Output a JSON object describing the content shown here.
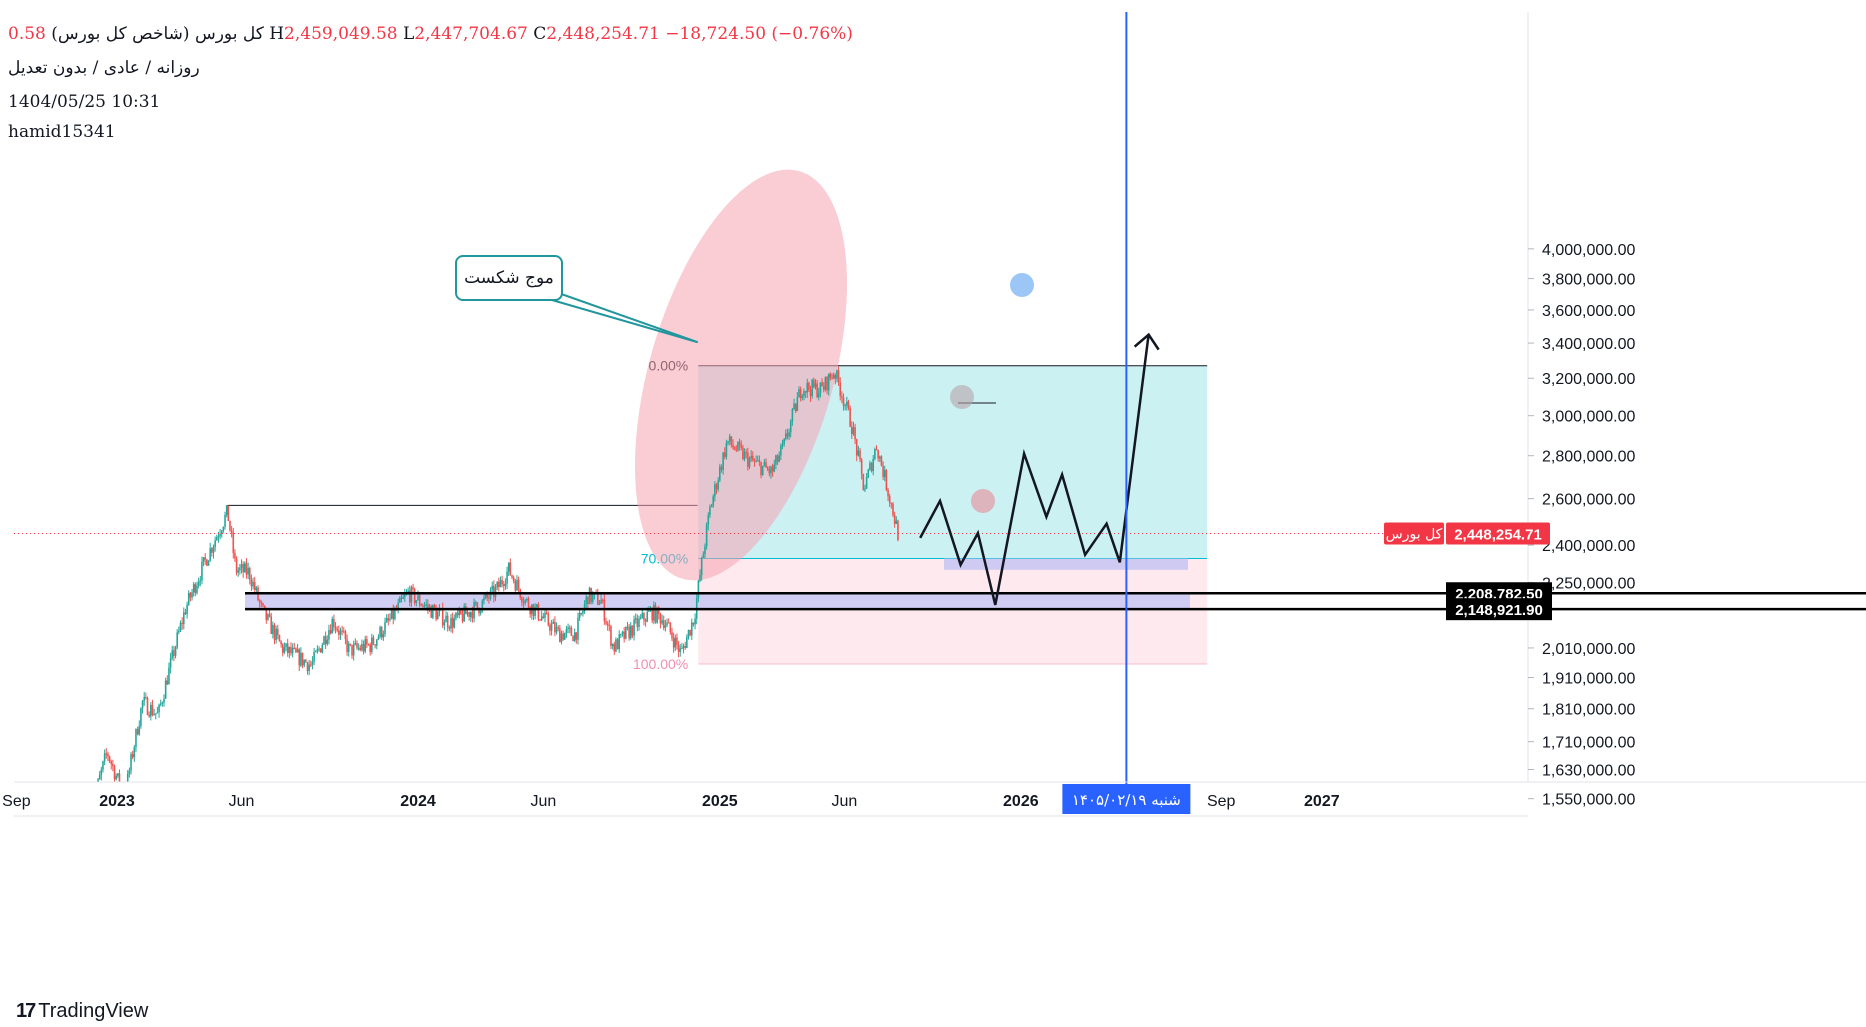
{
  "header": {
    "title": "کل بورس (شاخص کل بورس)",
    "open_tail": "0.58",
    "high_prefix": "H",
    "high": "2,459,049.58",
    "low_prefix": "L",
    "low": "2,447,704.67",
    "close_prefix": "C",
    "close": "2,448,254.71",
    "change": "−18,724.50 (−0.76%)",
    "subtitle": "روزانه / عادی / بدون تعدیل",
    "datetime": "1404/05/25 10:31",
    "author": "hamid15341"
  },
  "branding": {
    "logo_mark": "17",
    "name": "TradingView"
  },
  "annotations": {
    "callout": "موج شکست",
    "fib_0": "0.00%",
    "fib_70": "70.00%",
    "fib_100": "100.00%",
    "cursor_date": "شنبه ۱۴۰۵/۰۲/۱۹"
  },
  "colors": {
    "up": "#26a69a",
    "down": "#ef5350",
    "vline": "#2962ff",
    "price_tag": "#f23645",
    "fib_upper_fill": "#c9f0f2",
    "fib_lower_fill": "#fde9ee",
    "zone_fill": "#c9c7f2",
    "ellipse_fill": "#f5a3b0",
    "callout_border": "#21969c"
  },
  "chart_data": {
    "type": "candlestick",
    "symbol": "کل بورس",
    "timeframe": "daily",
    "y_scale": "log",
    "ylim": [
      1500000,
      4000000
    ],
    "y_ticks": [
      1550000,
      1630000,
      1710000,
      1810000,
      1910000,
      2010000,
      2250000,
      2400000,
      2600000,
      2800000,
      3000000,
      3200000,
      3400000,
      3600000,
      3800000,
      4000000
    ],
    "y_tick_labels": [
      "1,550,000.00",
      "1,630,000.00",
      "1,710,000.00",
      "1,810,000.00",
      "1,910,000.00",
      "2,010,000.00",
      "2,250,000.00",
      "2,400,000.00",
      "2,600,000.00",
      "2,800,000.00",
      "3,000,000.00",
      "3,200,000.00",
      "3,400,000.00",
      "3,600,000.00",
      "3,800,000.00",
      "4,000,000.00"
    ],
    "x_ticks": [
      "2022-09",
      "2023-01",
      "2023-06",
      "2024-01",
      "2024-06",
      "2025-01",
      "2025-06",
      "2026-01",
      "2026-09",
      "2027-01"
    ],
    "x_tick_labels": [
      "Sep",
      "2023",
      "Jun",
      "2024",
      "Jun",
      "2025",
      "Jun",
      "2026",
      "Sep",
      "2027"
    ],
    "price_path": [
      [
        "2022-12-01",
        1520000
      ],
      [
        "2022-12-20",
        1680000
      ],
      [
        "2023-01-10",
        1550000
      ],
      [
        "2023-02-01",
        1830000
      ],
      [
        "2023-02-20",
        1790000
      ],
      [
        "2023-03-25",
        2150000
      ],
      [
        "2023-05-15",
        2540000
      ],
      [
        "2023-05-25",
        2300000
      ],
      [
        "2023-06-10",
        2290000
      ],
      [
        "2023-06-25",
        2150000
      ],
      [
        "2023-07-20",
        2010000
      ],
      [
        "2023-08-25",
        1950000
      ],
      [
        "2023-09-20",
        2110000
      ],
      [
        "2023-10-10",
        2000000
      ],
      [
        "2023-11-05",
        2020000
      ],
      [
        "2023-12-01",
        2120000
      ],
      [
        "2023-12-20",
        2210000
      ],
      [
        "2024-01-15",
        2150000
      ],
      [
        "2024-02-10",
        2100000
      ],
      [
        "2024-03-15",
        2160000
      ],
      [
        "2024-04-05",
        2220000
      ],
      [
        "2024-04-20",
        2300000
      ],
      [
        "2024-05-10",
        2180000
      ],
      [
        "2024-06-20",
        2060000
      ],
      [
        "2024-07-10",
        2060000
      ],
      [
        "2024-07-25",
        2200000
      ],
      [
        "2024-08-10",
        2180000
      ],
      [
        "2024-08-25",
        2010000
      ],
      [
        "2024-09-10",
        2060000
      ],
      [
        "2024-10-10",
        2140000
      ],
      [
        "2024-10-25",
        2110000
      ],
      [
        "2024-11-15",
        1990000
      ],
      [
        "2024-12-01",
        2120000
      ],
      [
        "2024-12-20",
        2550000
      ],
      [
        "2025-01-10",
        2870000
      ],
      [
        "2025-02-05",
        2780000
      ],
      [
        "2025-03-05",
        2720000
      ],
      [
        "2025-03-20",
        2850000
      ],
      [
        "2025-04-10",
        3150000
      ],
      [
        "2025-05-05",
        3140000
      ],
      [
        "2025-05-20",
        3240000
      ],
      [
        "2025-06-10",
        2950000
      ],
      [
        "2025-06-25",
        2640000
      ],
      [
        "2025-07-10",
        2850000
      ],
      [
        "2025-08-05",
        2450000
      ]
    ],
    "last_price": 2448254.71,
    "last_price_label": "کل بورس",
    "zone": {
      "top": 2208782.5,
      "bottom": 2148921.9
    },
    "fib": {
      "level_0": 3270000,
      "level_70": 2345000,
      "level_100": 1955000,
      "start": "2024-12-01",
      "end": "2026-08-15"
    },
    "resistance_line": {
      "start": "2023-05-15",
      "end": "2024-12-05",
      "price": 2570000
    },
    "projection_path": [
      [
        "2025-09-01",
        2430000
      ],
      [
        "2025-09-25",
        2590000
      ],
      [
        "2025-10-20",
        2320000
      ],
      [
        "2025-11-10",
        2450000
      ],
      [
        "2025-12-01",
        2165000
      ],
      [
        "2026-01-05",
        2810000
      ],
      [
        "2026-02-01",
        2520000
      ],
      [
        "2026-02-20",
        2710000
      ],
      [
        "2026-03-20",
        2360000
      ],
      [
        "2026-04-15",
        2490000
      ],
      [
        "2026-05-01",
        2330000
      ],
      [
        "2026-06-05",
        3450000
      ]
    ],
    "cursor_date": "2026-05-09"
  }
}
